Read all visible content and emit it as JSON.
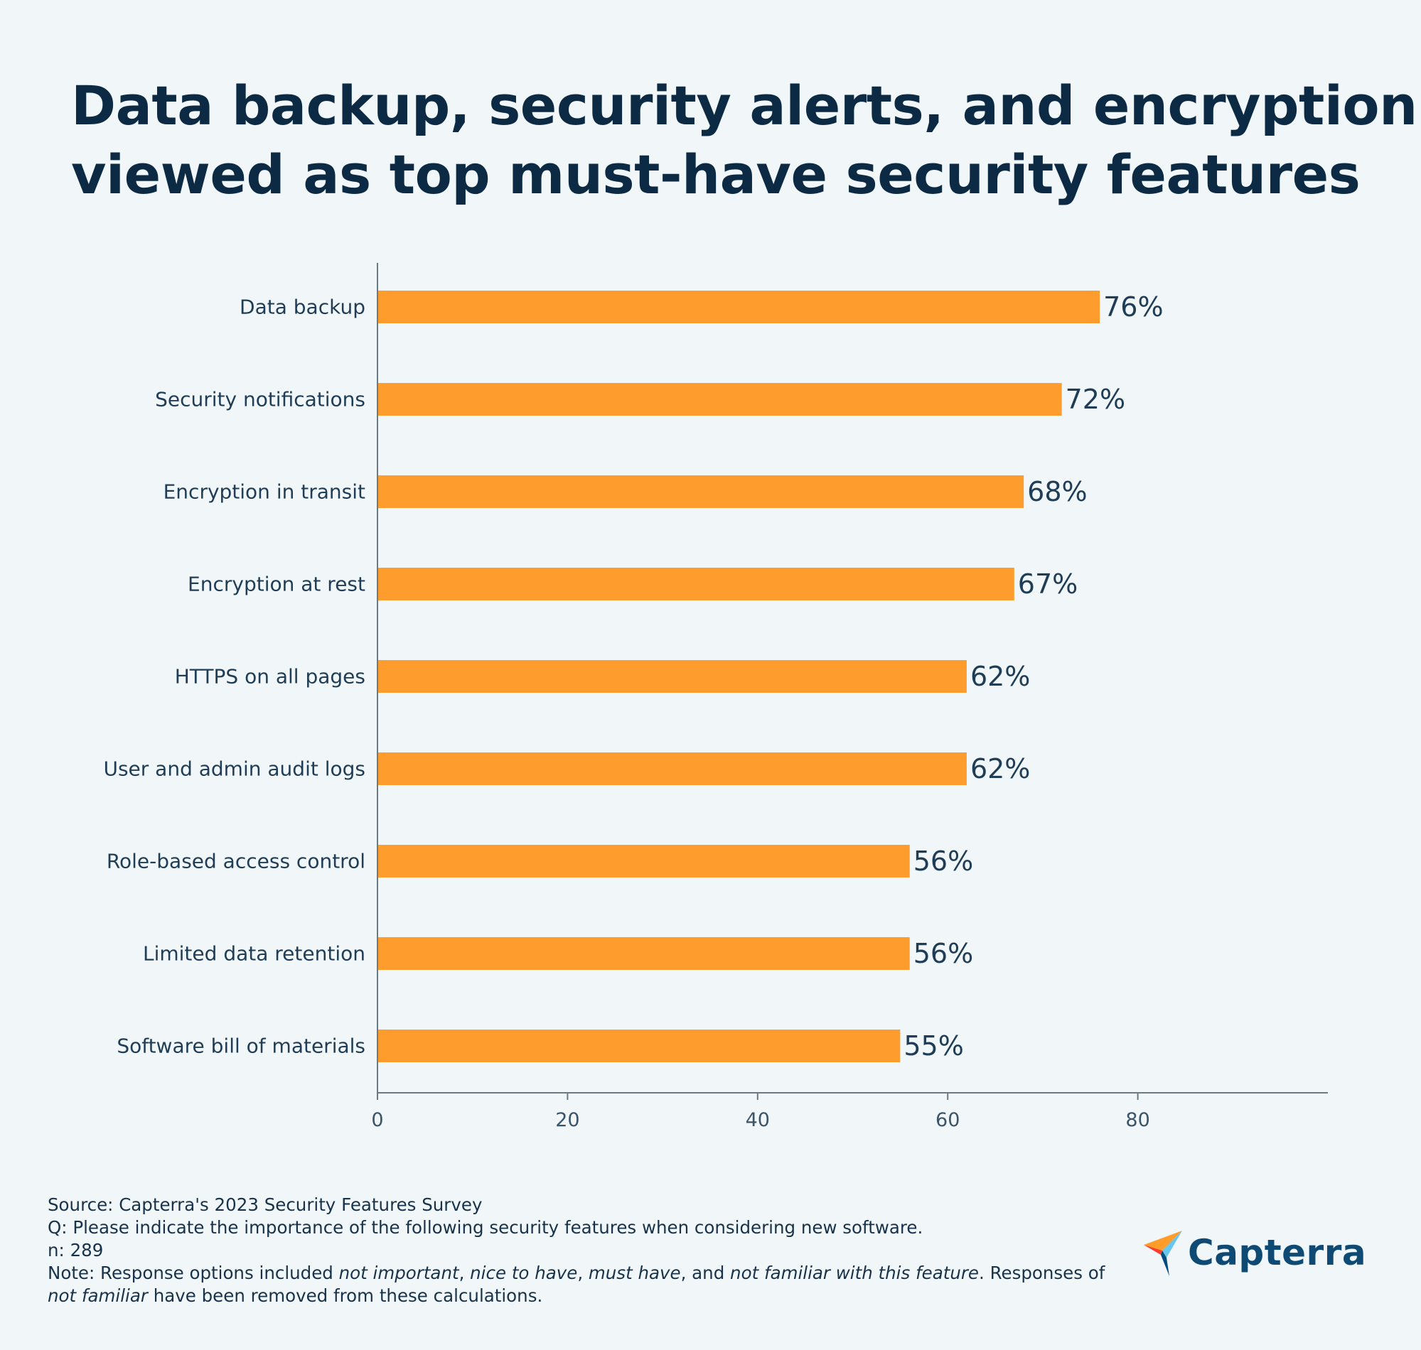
{
  "title_lines": [
    "Data backup, security alerts, and encryption",
    "viewed as top must-have security features"
  ],
  "chart_data": {
    "type": "bar",
    "orientation": "horizontal",
    "categories": [
      "Data backup",
      "Security notifications",
      "Encryption in transit",
      "Encryption at rest",
      "HTTPS on all pages",
      "User and admin audit logs",
      "Role-based access control",
      "Limited data retention",
      "Software bill of materials"
    ],
    "values": [
      76,
      72,
      68,
      67,
      62,
      62,
      56,
      56,
      55
    ],
    "value_labels": [
      "76%",
      "72%",
      "68%",
      "67%",
      "62%",
      "62%",
      "56%",
      "56%",
      "55%"
    ],
    "xticks": [
      0,
      20,
      40,
      60,
      80
    ],
    "xlim": [
      0,
      100
    ],
    "grid": false,
    "bar_color": "#fe9d2e"
  },
  "notes": {
    "source": "Source: Capterra's 2023 Security Features Survey",
    "question": "Q: Please indicate the importance of the following security features when considering new software.",
    "n": "n: 289",
    "note_1_pre": "Note: Response options included ",
    "note_1_opt1": "not important",
    "note_1_sep1": ", ",
    "note_1_opt2": "nice to have",
    "note_1_sep2": ", ",
    "note_1_opt3": "must have",
    "note_1_sep3": ", and ",
    "note_1_opt4": "not familiar with this feature",
    "note_1_post": ". Responses of",
    "note_2_em": "not familiar",
    "note_2_post": " have been removed from these calculations."
  },
  "logo": {
    "text": "Capterra",
    "colors": {
      "orange": "#ff9d28",
      "red": "#ff3d2e",
      "blue": "#68c5ed",
      "navy": "#044d80"
    },
    "icon": "capterra-arrow-icon"
  }
}
